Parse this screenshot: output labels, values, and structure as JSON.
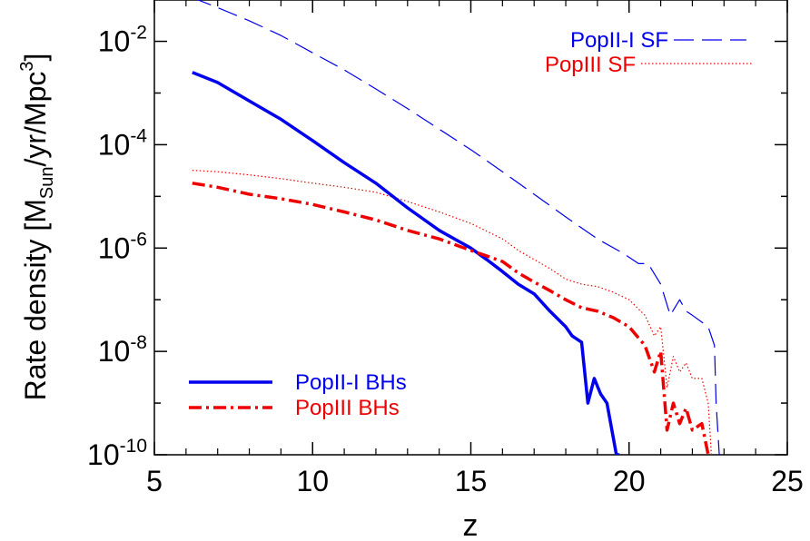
{
  "chart_data": {
    "type": "line",
    "title": "",
    "xlabel": "z",
    "ylabel": {
      "prefix": "Rate density  [M",
      "sub": "Sun",
      "middle": "/yr/Mpc",
      "sup": "3",
      "suffix": "]"
    },
    "xlim": [
      5,
      25
    ],
    "ylim": [
      1e-10,
      0.1
    ],
    "yscale": "log",
    "xticks": [
      {
        "value": 5,
        "label": "5"
      },
      {
        "value": 10,
        "label": "10"
      },
      {
        "value": 15,
        "label": "15"
      },
      {
        "value": 20,
        "label": "20"
      },
      {
        "value": 25,
        "label": "25"
      }
    ],
    "yticks": [
      {
        "value": 0.01,
        "base": "10",
        "exp": "-2"
      },
      {
        "value": 0.0001,
        "base": "10",
        "exp": "-4"
      },
      {
        "value": 1e-06,
        "base": "10",
        "exp": "-6"
      },
      {
        "value": 1e-08,
        "base": "10",
        "exp": "-8"
      },
      {
        "value": 1e-10,
        "base": "10",
        "exp": "-10"
      }
    ],
    "grid": false,
    "legends": [
      {
        "placement": "top-right",
        "entries": [
          "PopII-I SF",
          "PopIII SF"
        ]
      },
      {
        "placement": "bottom-left",
        "entries": [
          "PopII-I BHs",
          "PopIII BHs"
        ]
      }
    ],
    "series": [
      {
        "name": "PopII-I SF",
        "color": "#0000ee",
        "dash": "long-dash",
        "width": "thin",
        "points": [
          [
            6.2,
            0.07
          ],
          [
            7,
            0.045
          ],
          [
            8,
            0.025
          ],
          [
            9,
            0.013
          ],
          [
            10,
            0.006
          ],
          [
            11,
            0.0028
          ],
          [
            12,
            0.0012
          ],
          [
            13,
            0.0005
          ],
          [
            14,
            0.0002
          ],
          [
            15,
            8e-05
          ],
          [
            16,
            3e-05
          ],
          [
            17,
            1.1e-05
          ],
          [
            18,
            4e-06
          ],
          [
            19,
            1.5e-06
          ],
          [
            19.8,
            8e-07
          ],
          [
            20.3,
            5e-07
          ],
          [
            20.6,
            5e-07
          ],
          [
            21,
            2e-07
          ],
          [
            21.3,
            5e-08
          ],
          [
            21.6,
            1e-07
          ],
          [
            21.8,
            6e-08
          ],
          [
            22,
            5e-08
          ],
          [
            22.5,
            3e-08
          ],
          [
            22.7,
            1.3e-08
          ],
          [
            22.75,
            1e-09
          ],
          [
            22.85,
            1e-10
          ]
        ]
      },
      {
        "name": "PopIII SF",
        "color": "#ee0000",
        "dash": "dotted",
        "width": "thin",
        "points": [
          [
            6.2,
            3.2e-05
          ],
          [
            7,
            3e-05
          ],
          [
            8,
            2.6e-05
          ],
          [
            9,
            2.2e-05
          ],
          [
            10,
            1.8e-05
          ],
          [
            11,
            1.5e-05
          ],
          [
            12,
            1.2e-05
          ],
          [
            13,
            8e-06
          ],
          [
            14,
            5e-06
          ],
          [
            15,
            3e-06
          ],
          [
            16,
            1.5e-06
          ],
          [
            16.5,
            9e-07
          ],
          [
            17,
            6e-07
          ],
          [
            17.5,
            4e-07
          ],
          [
            18,
            2.5e-07
          ],
          [
            18.5,
            2e-07
          ],
          [
            19,
            1.8e-07
          ],
          [
            19.5,
            1.4e-07
          ],
          [
            20,
            1e-07
          ],
          [
            20.5,
            5e-08
          ],
          [
            20.8,
            2e-08
          ],
          [
            21,
            3e-08
          ],
          [
            21.2,
            2e-09
          ],
          [
            21.4,
            8e-09
          ],
          [
            21.6,
            4e-09
          ],
          [
            21.8,
            6e-09
          ],
          [
            22,
            3e-09
          ],
          [
            22.3,
            3e-09
          ],
          [
            22.5,
            1e-09
          ],
          [
            22.6,
            1e-10
          ]
        ]
      },
      {
        "name": "PopII-I BHs",
        "color": "#0000ee",
        "dash": "solid",
        "width": "thick",
        "points": [
          [
            6.2,
            0.0025
          ],
          [
            7,
            0.0016
          ],
          [
            8,
            0.0007
          ],
          [
            9,
            0.00031
          ],
          [
            10,
            0.00012
          ],
          [
            11,
            4.5e-05
          ],
          [
            12,
            1.8e-05
          ],
          [
            13,
            6e-06
          ],
          [
            14,
            2.2e-06
          ],
          [
            15,
            1e-06
          ],
          [
            15.5,
            6e-07
          ],
          [
            16,
            3.5e-07
          ],
          [
            16.5,
            2e-07
          ],
          [
            17,
            1.3e-07
          ],
          [
            17.5,
            6e-08
          ],
          [
            18,
            3e-08
          ],
          [
            18.2,
            2e-08
          ],
          [
            18.5,
            1.5e-08
          ],
          [
            18.7,
            1e-09
          ],
          [
            18.9,
            3e-09
          ],
          [
            19.1,
            1.5e-09
          ],
          [
            19.3,
            1e-09
          ],
          [
            19.6,
            1e-10
          ],
          [
            19.7,
            1e-10
          ]
        ]
      },
      {
        "name": "PopIII BHs",
        "color": "#ee0000",
        "dash": "dash-dot",
        "width": "thick",
        "points": [
          [
            6.2,
            1.8e-05
          ],
          [
            7,
            1.5e-05
          ],
          [
            8,
            1.1e-05
          ],
          [
            9,
            9e-06
          ],
          [
            10,
            7e-06
          ],
          [
            11,
            5e-06
          ],
          [
            12,
            3.5e-06
          ],
          [
            13,
            2.2e-06
          ],
          [
            14,
            1.5e-06
          ],
          [
            15,
            9e-07
          ],
          [
            16,
            5.5e-07
          ],
          [
            16.5,
            3.3e-07
          ],
          [
            17,
            2.2e-07
          ],
          [
            17.5,
            1.5e-07
          ],
          [
            18,
            1e-07
          ],
          [
            18.5,
            7e-08
          ],
          [
            19,
            6e-08
          ],
          [
            19.5,
            4.5e-08
          ],
          [
            20,
            3e-08
          ],
          [
            20.5,
            1.3e-08
          ],
          [
            20.8,
            4e-09
          ],
          [
            21,
            1e-08
          ],
          [
            21.2,
            3e-10
          ],
          [
            21.4,
            1e-09
          ],
          [
            21.6,
            4e-10
          ],
          [
            21.8,
            8e-10
          ],
          [
            22,
            3e-10
          ],
          [
            22.3,
            4e-10
          ],
          [
            22.5,
            1e-10
          ]
        ]
      }
    ]
  }
}
